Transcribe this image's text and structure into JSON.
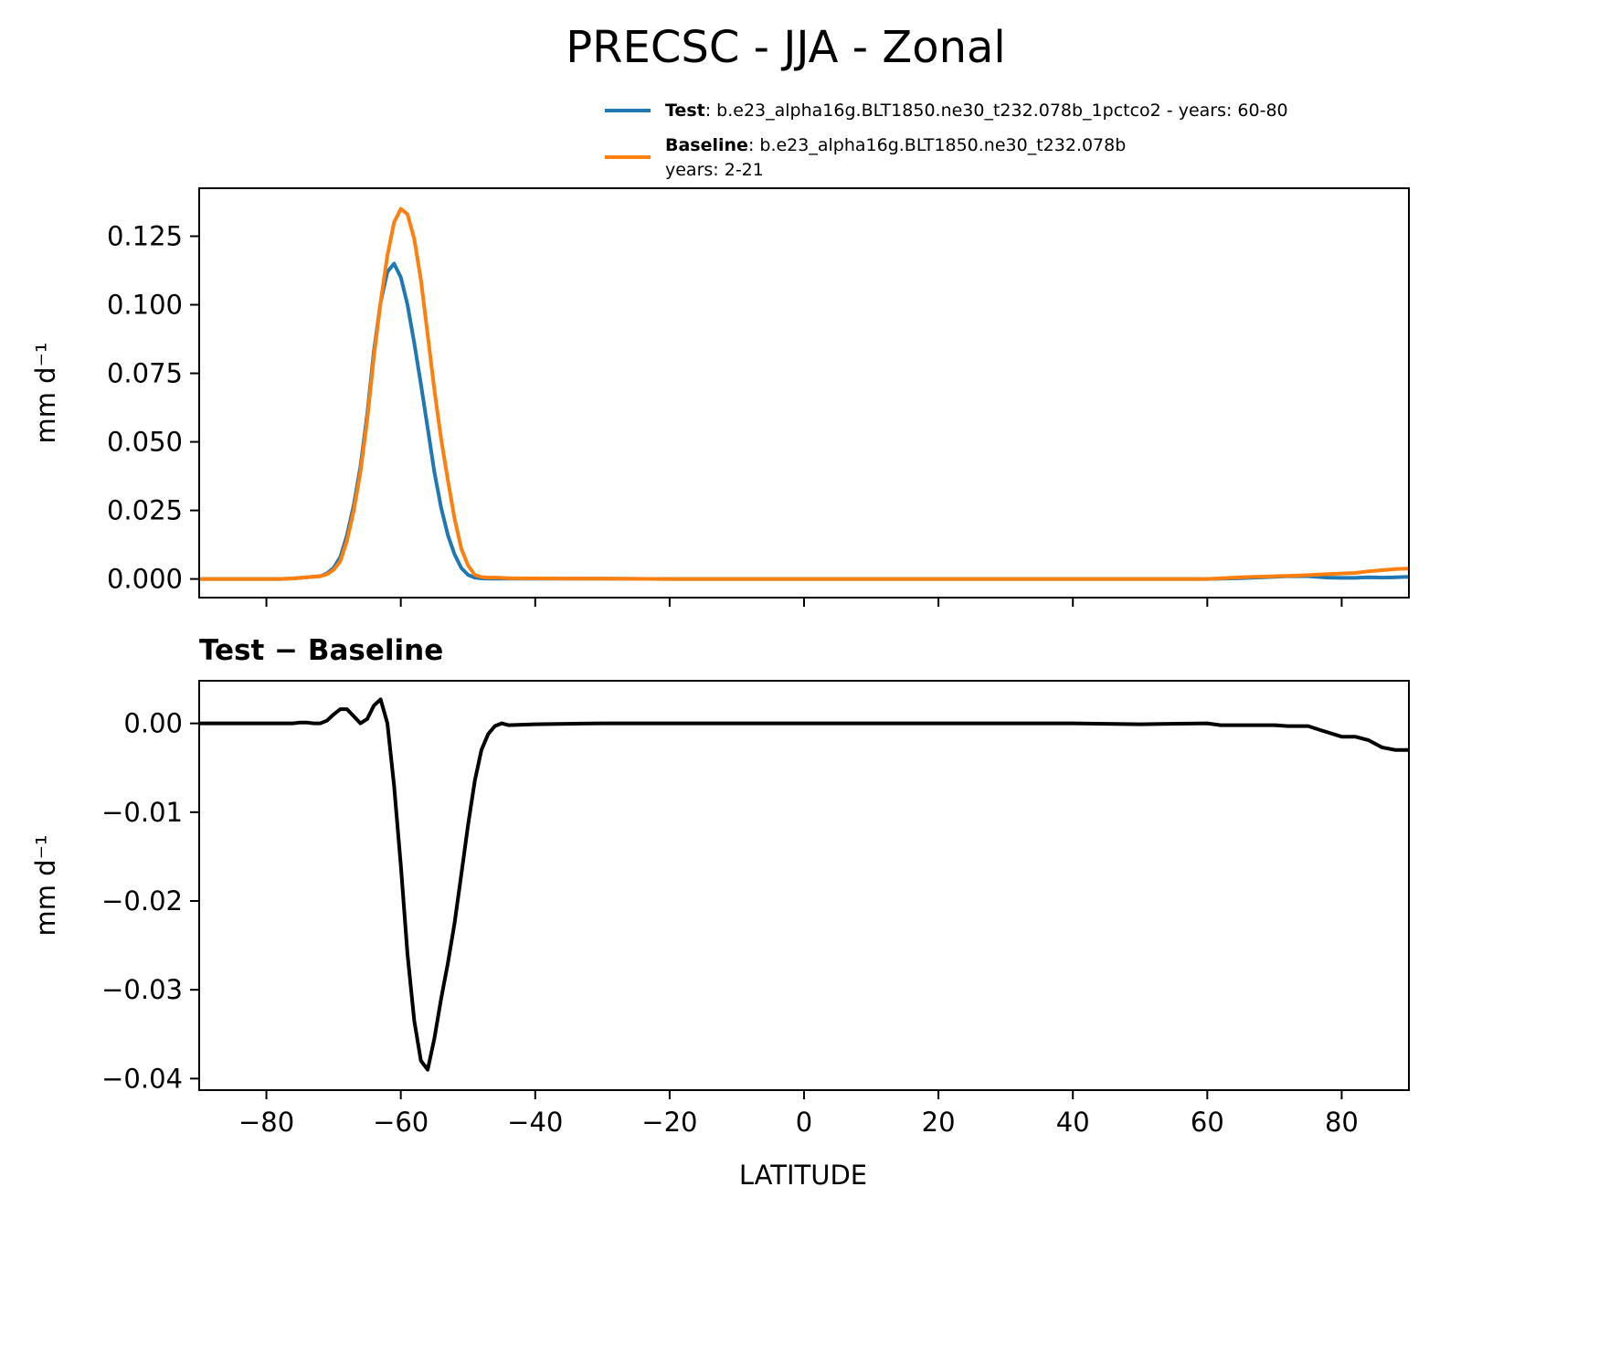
{
  "title": "PRECSC - JJA - Zonal",
  "legend": [
    {
      "name_bold": "Test",
      "text": ": b.e23_alpha16g.BLT1850.ne30_t232.078b_1pctco2 - years: 60-80",
      "text2": "",
      "color": "#1f77b4"
    },
    {
      "name_bold": "Baseline",
      "text": ": b.e23_alpha16g.BLT1850.ne30_t232.078b",
      "text2": "years: 2-21",
      "color": "#ff7f0e"
    }
  ],
  "colors": {
    "test": "#1f77b4",
    "baseline": "#ff7f0e",
    "diff": "#000000"
  },
  "chart_data": [
    {
      "type": "line",
      "title": "",
      "xlabel": "",
      "ylabel": "mm d⁻¹",
      "xlim": [
        -90,
        90
      ],
      "ylim": [
        -0.0068,
        0.1425
      ],
      "xticks": [
        -80,
        -60,
        -40,
        -20,
        0,
        20,
        40,
        60,
        80
      ],
      "yticks": [
        0.0,
        0.025,
        0.05,
        0.075,
        0.1,
        0.125
      ],
      "ytick_labels": [
        "0.000",
        "0.025",
        "0.050",
        "0.075",
        "0.100",
        "0.125"
      ],
      "x": [
        -90,
        -86,
        -82,
        -78,
        -76,
        -74,
        -72,
        -71,
        -70,
        -69,
        -68,
        -67,
        -66,
        -65,
        -64,
        -63,
        -62,
        -61,
        -60,
        -59,
        -58,
        -57,
        -56,
        -55,
        -54,
        -53,
        -52,
        -51,
        -50,
        -49,
        -48,
        -47,
        -46,
        -45,
        -44,
        -40,
        -30,
        -20,
        0,
        20,
        40,
        50,
        60,
        65,
        70,
        72,
        75,
        78,
        80,
        82,
        84,
        86,
        88,
        90
      ],
      "series": [
        {
          "name": "Test",
          "color": "#1f77b4",
          "values": [
            0,
            0,
            0,
            0,
            0.0002,
            0.0006,
            0.001,
            0.002,
            0.004,
            0.008,
            0.016,
            0.027,
            0.041,
            0.06,
            0.083,
            0.101,
            0.112,
            0.115,
            0.11,
            0.1,
            0.086,
            0.071,
            0.055,
            0.039,
            0.026,
            0.016,
            0.009,
            0.004,
            0.0015,
            0.0005,
            0.0002,
            0.0001,
            0.0001,
            0.0001,
            0.0001,
            0.0001,
            0.0001,
            0,
            0,
            0,
            0,
            0,
            0,
            0.0003,
            0.0008,
            0.001,
            0.001,
            0.0005,
            0.0004,
            0.0004,
            0.0006,
            0.0005,
            0.0006,
            0.0008
          ]
        },
        {
          "name": "Baseline",
          "color": "#ff7f0e",
          "values": [
            0,
            0,
            0,
            0,
            0.0002,
            0.0006,
            0.001,
            0.0017,
            0.0033,
            0.0065,
            0.014,
            0.025,
            0.039,
            0.058,
            0.081,
            0.101,
            0.118,
            0.13,
            0.135,
            0.133,
            0.124,
            0.109,
            0.089,
            0.069,
            0.051,
            0.036,
            0.022,
            0.011,
            0.005,
            0.0015,
            0.0007,
            0.0005,
            0.0005,
            0.0004,
            0.0003,
            0.0002,
            0.0001,
            0,
            0,
            0,
            0,
            0,
            0,
            0.0006,
            0.001,
            0.0011,
            0.0014,
            0.0018,
            0.002,
            0.0022,
            0.0028,
            0.0032,
            0.0036,
            0.0038
          ]
        }
      ]
    },
    {
      "type": "line",
      "title": "Test − Baseline",
      "xlabel": "LATITUDE",
      "ylabel": "mm d⁻¹",
      "xlim": [
        -90,
        90
      ],
      "ylim": [
        -0.0413,
        0.0048
      ],
      "xticks": [
        -80,
        -60,
        -40,
        -20,
        0,
        20,
        40,
        60,
        80
      ],
      "xtick_labels": [
        "−80",
        "−60",
        "−40",
        "−20",
        "0",
        "20",
        "40",
        "60",
        "80"
      ],
      "yticks": [
        0.0,
        -0.01,
        -0.02,
        -0.03,
        -0.04
      ],
      "ytick_labels": [
        "0.00",
        "−0.01",
        "−0.02",
        "−0.03",
        "−0.04"
      ],
      "x": [
        -90,
        -80,
        -76,
        -75,
        -74,
        -73,
        -72,
        -71,
        -70,
        -69,
        -68,
        -67,
        -66,
        -65,
        -64,
        -63,
        -62,
        -61,
        -60,
        -59,
        -58,
        -57,
        -56,
        -55,
        -54,
        -53,
        -52,
        -51,
        -50,
        -49,
        -48,
        -47,
        -46,
        -45,
        -44,
        -40,
        -30,
        -20,
        0,
        20,
        40,
        50,
        60,
        62,
        65,
        70,
        72,
        75,
        77,
        80,
        82,
        84,
        86,
        88,
        90
      ],
      "series": [
        {
          "name": "",
          "color": "#000000",
          "values": [
            0,
            0,
            0,
            0.0001,
            0.0001,
            0,
            0,
            0.0003,
            0.001,
            0.0016,
            0.0016,
            0.0008,
            0,
            0.0005,
            0.002,
            0.0027,
            0,
            -0.007,
            -0.016,
            -0.026,
            -0.0335,
            -0.038,
            -0.039,
            -0.0355,
            -0.031,
            -0.027,
            -0.0225,
            -0.017,
            -0.0115,
            -0.0065,
            -0.003,
            -0.0012,
            -0.0003,
            0,
            -0.0002,
            -0.0001,
            0,
            0,
            0,
            0,
            0,
            -0.0001,
            0,
            -0.0002,
            -0.0002,
            -0.0002,
            -0.0003,
            -0.0003,
            -0.0008,
            -0.0015,
            -0.0015,
            -0.0019,
            -0.0027,
            -0.003,
            -0.003
          ]
        }
      ]
    }
  ]
}
